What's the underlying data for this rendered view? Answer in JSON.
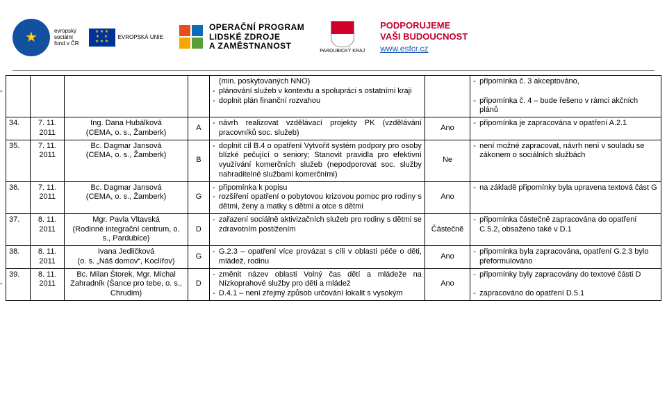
{
  "header": {
    "esf_lines": [
      "evropský",
      "sociální",
      "fond v ČR"
    ],
    "eu_label": "EVROPSKÁ UNIE",
    "program_lines": [
      "OPERAČNÍ PROGRAM",
      "LIDSKÉ ZDROJE",
      "A ZAMĚSTNANOST"
    ],
    "kraj": "PARDUBICKÝ KRAJ",
    "support_lines": [
      "PODPORUJEME",
      "VAŠI BUDOUCNOST"
    ],
    "support_url": "www.esfcr.cz",
    "colors": {
      "esf_blue": "#1450a0",
      "eu_blue": "#003399",
      "eu_yellow": "#ffcc00",
      "red": "#d0002a",
      "support_red": "#c5002e",
      "link": "#1558b0",
      "oplz_q1": "#e84e1b",
      "oplz_q2": "#0b6db7",
      "oplz_q3": "#f4a700",
      "oplz_q4": "#5aa03a"
    }
  },
  "top_row": {
    "desc": [
      "(min. poskytovaných NNO)",
      "plánování služeb v kontextu a spolupráci s ostatními kraji",
      "doplnit plán finanční rozvahou"
    ],
    "resp": [
      "připomínka č. 3 akceptováno,",
      "",
      "připomínka č. 4 – bude řešeno v rámci akčních plánů"
    ]
  },
  "rows": [
    {
      "n": "34.",
      "date": "7. 11. 2011",
      "who": "Ing. Dana Hubálková\n(CEMA, o. s., Žamberk)",
      "letter": "A",
      "desc": [
        "návrh realizovat vzdělávací projekty PK (vzdělávání pracovníků soc. služeb)"
      ],
      "yn": "Ano",
      "resp": [
        "připomínka je zapracována v opatření A.2.1"
      ]
    },
    {
      "n": "35.",
      "date": "7. 11. 2011",
      "who": "Bc. Dagmar Jansová\n(CEMA, o. s., Žamberk)",
      "letter": "B",
      "desc": [
        "doplnit cíl B.4 o opatření Vytvořit systém podpory pro osoby blízké pečující o seniory; Stanovit pravidla pro efektivní využívání komerčních služeb (nepodporovat soc. služby nahraditelné službami komerčními)"
      ],
      "yn": "Ne",
      "resp": [
        "není možné zapracovat, návrh není v souladu se zákonem o sociálních službách"
      ]
    },
    {
      "n": "36.",
      "date": "7. 11. 2011",
      "who": "Bc. Dagmar Jansová\n(CEMA, o. s., Žamberk)",
      "letter": "G",
      "desc": [
        "připomínka k popisu",
        "rozšíření opatření o pobytovou krizovou pomoc pro rodiny s dětmi, ženy a matky s dětmi a otce s dětmi"
      ],
      "yn": "Ano",
      "resp": [
        "na základě připomínky byla upravena textová část G"
      ]
    },
    {
      "n": "37.",
      "date": "8. 11. 2011",
      "who": "Mgr. Pavla Vltavská\n(Rodinné integrační centrum, o. s., Pardubice)",
      "letter": "D",
      "desc": [
        "zařazení sociálně aktivizačních služeb pro rodiny s dětmi se zdravotním postižením"
      ],
      "yn": "Částečně",
      "resp": [
        "připomínka částečně zapracována do opatření C.5.2, obsaženo také v D.1"
      ]
    },
    {
      "n": "38.",
      "date": "8. 11. 2011",
      "who": "Ivana Jedličková\n(o. s. „Náš domov“, Koclířov)",
      "letter": "G",
      "desc": [
        "G.2.3 – opatření více provázat s cíli v oblasti péče o děti, mládež, rodinu"
      ],
      "yn": "Ano",
      "resp": [
        "připomínka byla zapracována, opatření G.2.3 bylo přeformulováno"
      ]
    },
    {
      "n": "39.",
      "date": "8. 11. 2011",
      "who": "Bc. Milan Štorek, Mgr. Michal Zahradník (Šance pro tebe, o. s., Chrudim)",
      "letter": "D",
      "desc": [
        "změnit název oblasti Volný čas dětí a mládeže na Nízkoprahové služby pro děti a mládež",
        "D.4.1 – není zřejmý způsob určování lokalit s vysokým"
      ],
      "yn": "Ano",
      "resp": [
        "připomínky byly zapracovány do textové části D",
        "",
        "zapracováno do opatření D.5.1"
      ]
    }
  ]
}
